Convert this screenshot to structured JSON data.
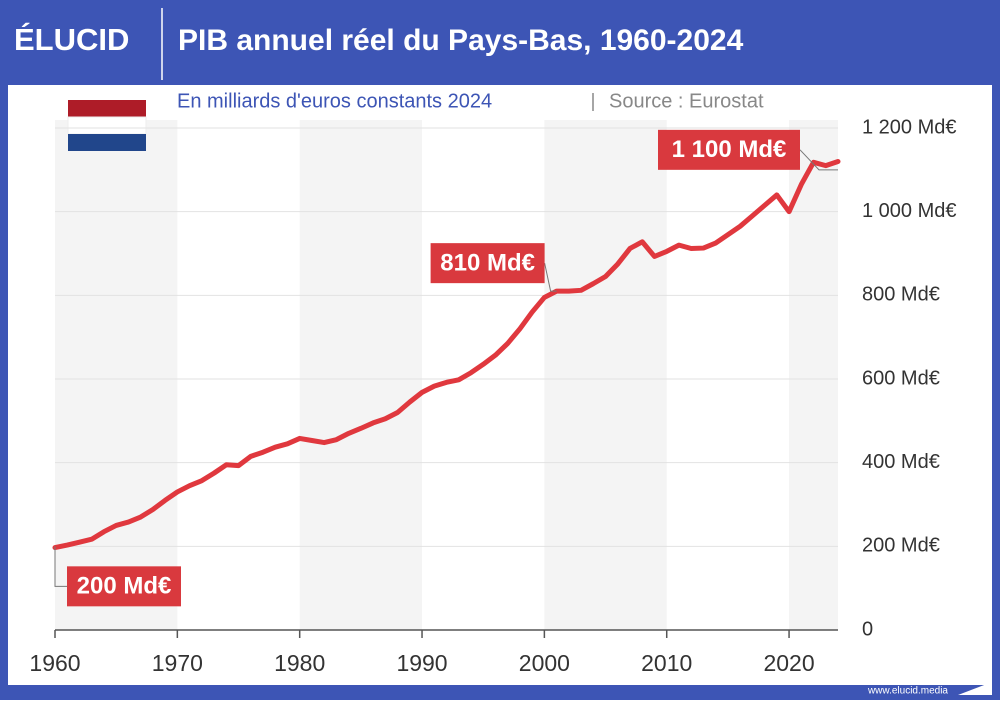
{
  "chart_data": {
    "type": "line",
    "brand": "ÉLUCID",
    "title": "PIB annuel réel du Pays-Bas, 1960-2024",
    "subtitle": "En milliards d'euros constants 2024",
    "source": "Source : Eurostat",
    "footer": "www.elucid.media",
    "x": [
      1960,
      1961,
      1962,
      1963,
      1964,
      1965,
      1966,
      1967,
      1968,
      1969,
      1970,
      1971,
      1972,
      1973,
      1974,
      1975,
      1976,
      1977,
      1978,
      1979,
      1980,
      1981,
      1982,
      1983,
      1984,
      1985,
      1986,
      1987,
      1988,
      1989,
      1990,
      1991,
      1992,
      1993,
      1994,
      1995,
      1996,
      1997,
      1998,
      1999,
      2000,
      2001,
      2002,
      2003,
      2004,
      2005,
      2006,
      2007,
      2008,
      2009,
      2010,
      2011,
      2012,
      2013,
      2014,
      2015,
      2016,
      2017,
      2018,
      2019,
      2020,
      2021,
      2022,
      2023,
      2024
    ],
    "series": [
      {
        "name": "PIB",
        "color": "#e0383e",
        "values": [
          197,
          203,
          210,
          217,
          235,
          250,
          258,
          270,
          288,
          310,
          330,
          345,
          357,
          375,
          395,
          393,
          415,
          425,
          437,
          445,
          458,
          453,
          448,
          455,
          470,
          482,
          495,
          505,
          520,
          545,
          568,
          583,
          592,
          598,
          615,
          635,
          657,
          685,
          720,
          760,
          795,
          810,
          810,
          812,
          828,
          845,
          875,
          912,
          928,
          893,
          905,
          920,
          912,
          913,
          925,
          945,
          965,
          990,
          1015,
          1040,
          1000,
          1065,
          1118,
          1110,
          1120
        ]
      }
    ],
    "annotations": [
      {
        "x": 1960,
        "y": 200,
        "label": "200 Md€"
      },
      {
        "x": 2001,
        "y": 810,
        "label": "810 Md€"
      },
      {
        "x": 2024,
        "y": 1100,
        "label": "1 100 Md€"
      }
    ],
    "xlim": [
      1960,
      2024
    ],
    "xticks": [
      1960,
      1970,
      1980,
      1990,
      2000,
      2010,
      2020
    ],
    "ylim": [
      0,
      1200
    ],
    "yticks": [
      0,
      {
        "value": 200,
        "label": "200 Md€"
      },
      {
        "value": 400,
        "label": "400 Md€"
      },
      {
        "value": 600,
        "label": "600 Md€"
      },
      {
        "value": 800,
        "label": "800 Md€"
      },
      {
        "value": 1000,
        "label": "1 000 Md€"
      },
      {
        "value": 1200,
        "label": "1 200 Md€"
      }
    ],
    "grid": true
  }
}
